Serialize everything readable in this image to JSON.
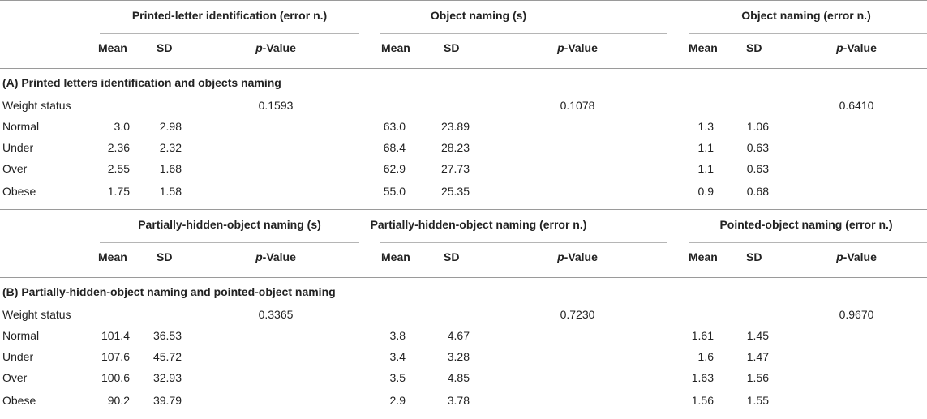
{
  "labels": {
    "mean": "Mean",
    "sd": "SD",
    "p": "p",
    "value_suffix": "-Value"
  },
  "sections": [
    {
      "title": "(A) Printed letters identification and objects naming",
      "groups": [
        {
          "header": "Printed-letter identification (error n.)",
          "p_value": "0.1593"
        },
        {
          "header": "Object naming (s)",
          "p_value": "0.1078"
        },
        {
          "header": "Object naming (error n.)",
          "p_value": "0.6410"
        }
      ],
      "rows": [
        {
          "label": "Weight status",
          "values": []
        },
        {
          "label": "Normal",
          "values": [
            [
              "3.0",
              "2.98"
            ],
            [
              "63.0",
              "23.89"
            ],
            [
              "1.3",
              "1.06"
            ]
          ]
        },
        {
          "label": "Under",
          "values": [
            [
              "2.36",
              "2.32"
            ],
            [
              "68.4",
              "28.23"
            ],
            [
              "1.1",
              "0.63"
            ]
          ]
        },
        {
          "label": "Over",
          "values": [
            [
              "2.55",
              "1.68"
            ],
            [
              "62.9",
              "27.73"
            ],
            [
              "1.1",
              "0.63"
            ]
          ]
        },
        {
          "label": "Obese",
          "values": [
            [
              "1.75",
              "1.58"
            ],
            [
              "55.0",
              "25.35"
            ],
            [
              "0.9",
              "0.68"
            ]
          ]
        }
      ]
    },
    {
      "title": "(B) Partially-hidden-object naming and pointed-object naming",
      "groups": [
        {
          "header": "Partially-hidden-object naming (s)",
          "p_value": "0.3365"
        },
        {
          "header": "Partially-hidden-object naming (error n.)",
          "p_value": "0.7230"
        },
        {
          "header": "Pointed-object naming (error n.)",
          "p_value": "0.9670"
        }
      ],
      "rows": [
        {
          "label": "Weight status",
          "values": []
        },
        {
          "label": "Normal",
          "values": [
            [
              "101.4",
              "36.53"
            ],
            [
              "3.8",
              "4.67"
            ],
            [
              "1.61",
              "1.45"
            ]
          ]
        },
        {
          "label": "Under",
          "values": [
            [
              "107.6",
              "45.72"
            ],
            [
              "3.4",
              "3.28"
            ],
            [
              "1.6",
              "1.47"
            ]
          ]
        },
        {
          "label": "Over",
          "values": [
            [
              "100.6",
              "32.93"
            ],
            [
              "3.5",
              "4.85"
            ],
            [
              "1.63",
              "1.56"
            ]
          ]
        },
        {
          "label": "Obese",
          "values": [
            [
              "90.2",
              "39.79"
            ],
            [
              "2.9",
              "3.78"
            ],
            [
              "1.56",
              "1.55"
            ]
          ]
        }
      ]
    }
  ]
}
